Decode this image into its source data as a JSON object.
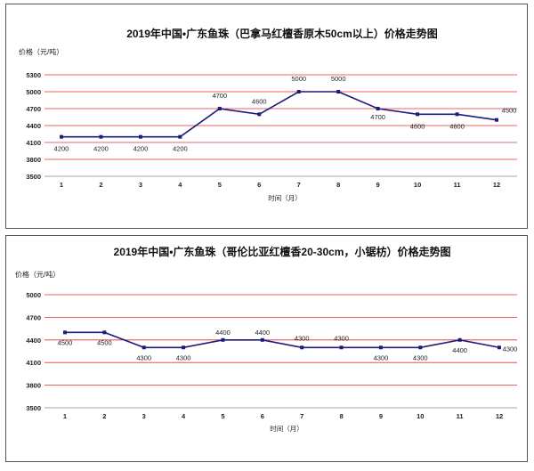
{
  "chart_data": [
    {
      "type": "line",
      "title": "2019年中国•广东鱼珠（巴拿马红檀香原木50cm以上）价格走势图",
      "ylabel": "价格（元/吨）",
      "xlabel": "时间（月）",
      "categories": [
        "1",
        "2",
        "3",
        "4",
        "5",
        "6",
        "7",
        "8",
        "9",
        "10",
        "11",
        "12"
      ],
      "values": [
        4200,
        4200,
        4200,
        4200,
        4700,
        4600,
        5000,
        5000,
        4700,
        4600,
        4600,
        4500
      ],
      "data_labels": [
        "4200",
        "4200",
        "4200",
        "4200",
        "4700",
        "4600",
        "5000",
        "5000",
        "4700",
        "4600",
        "4600",
        "4500"
      ],
      "yticks": [
        3500,
        3800,
        4100,
        4400,
        4700,
        5000,
        5300
      ],
      "ylim": [
        3500,
        5300
      ],
      "grid": true,
      "gridline_color": "#e03030",
      "line_color": "#1c1c7a"
    },
    {
      "type": "line",
      "title": "2019年中国•广东鱼珠（哥伦比亚红檀香20-30cm，小锯枋）价格走势图",
      "ylabel": "价格（元/吨）",
      "xlabel": "时间（月）",
      "categories": [
        "1",
        "2",
        "3",
        "4",
        "5",
        "6",
        "7",
        "8",
        "9",
        "10",
        "11",
        "12"
      ],
      "values": [
        4500,
        4500,
        4300,
        4300,
        4400,
        4400,
        4300,
        4300,
        4300,
        4300,
        4400,
        4300
      ],
      "data_labels": [
        "4500",
        "4500",
        "4300",
        "4300",
        "4400",
        "4400",
        "4300",
        "4300",
        "4300",
        "4300",
        "4400",
        "4300"
      ],
      "yticks": [
        3500,
        3800,
        4100,
        4400,
        4700,
        5000
      ],
      "ylim": [
        3500,
        5000
      ],
      "grid": true,
      "gridline_color": "#e03030",
      "line_color": "#1c1c7a"
    }
  ]
}
